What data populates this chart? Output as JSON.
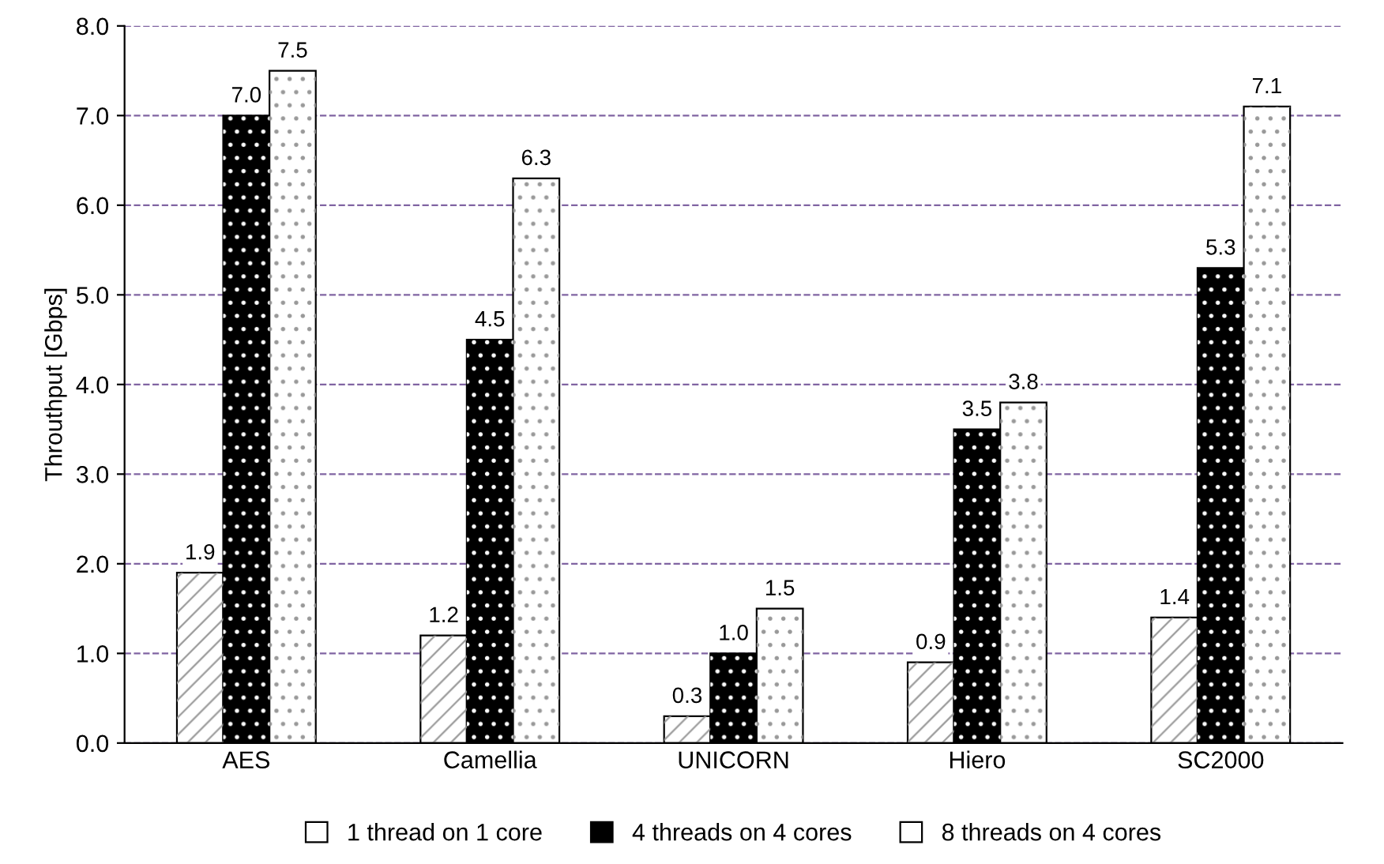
{
  "chart_data": {
    "type": "bar",
    "ylabel": "Throuthput [Gbps]",
    "categories": [
      "AES",
      "Camellia",
      "UNICORN",
      "Hiero",
      "SC2000"
    ],
    "series": [
      {
        "name": "1 thread on 1 core",
        "color": "#ffffff",
        "values": [
          1.9,
          1.2,
          0.3,
          0.9,
          1.4
        ],
        "value_labels": [
          "1.9",
          "1.2",
          "0.3",
          "0.9",
          "1.4"
        ]
      },
      {
        "name": "4 threads on 4 cores",
        "color": "#000000",
        "values": [
          7.0,
          4.5,
          1.0,
          3.5,
          5.3
        ],
        "value_labels": [
          "7.0",
          "4.5",
          "1.0",
          "3.5",
          "5.3"
        ]
      },
      {
        "name": "8 threads on 4 cores",
        "color": "#ffffff",
        "values": [
          7.5,
          6.3,
          1.5,
          3.8,
          7.1
        ],
        "value_labels": [
          "7.5",
          "6.3",
          "1.5",
          "3.8",
          "7.1"
        ]
      }
    ],
    "ylim": [
      0,
      8
    ],
    "yticks": [
      {
        "value": 0,
        "label": "0.0"
      },
      {
        "value": 1,
        "label": "1.0"
      },
      {
        "value": 2,
        "label": "2.0"
      },
      {
        "value": 3,
        "label": "3.0"
      },
      {
        "value": 4,
        "label": "4.0"
      },
      {
        "value": 5,
        "label": "5.0"
      },
      {
        "value": 6,
        "label": "6.0"
      },
      {
        "value": 7,
        "label": "7.0"
      },
      {
        "value": 8,
        "label": "8.0"
      }
    ],
    "grid": "y",
    "legend": "bottom"
  }
}
